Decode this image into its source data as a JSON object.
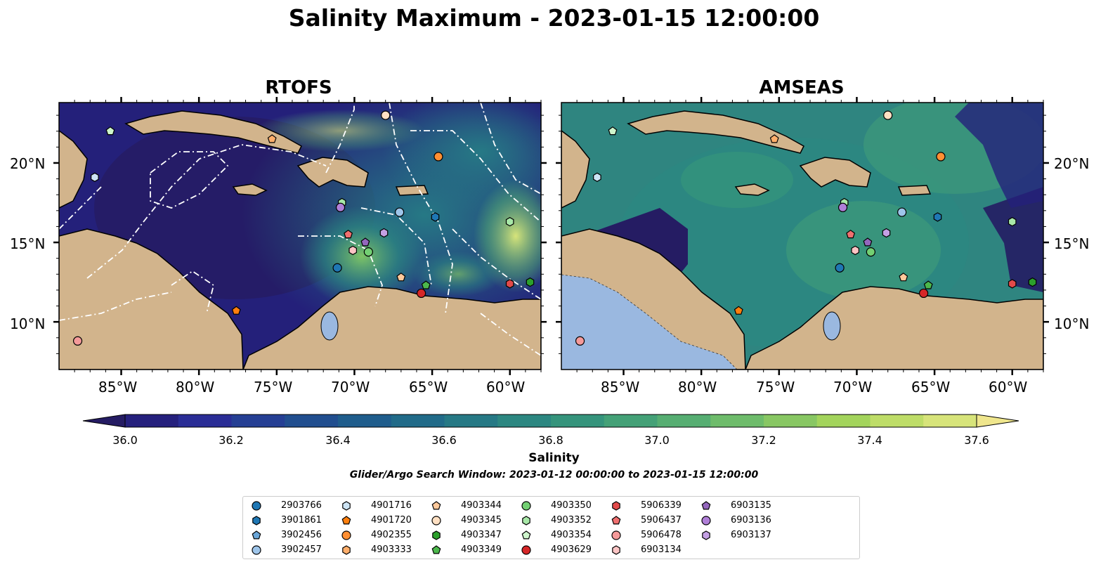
{
  "title": "Salinity Maximum - 2023-01-15 12:00:00",
  "panels": [
    {
      "title": "RTOFS"
    },
    {
      "title": "AMSEAS"
    }
  ],
  "lon_ticks": [
    "85°W",
    "80°W",
    "75°W",
    "70°W",
    "65°W",
    "60°W"
  ],
  "lat_ticks": [
    "20°N",
    "15°N",
    "10°N"
  ],
  "colorbar": {
    "label": "Salinity",
    "tick_labels": [
      "36.0",
      "36.2",
      "36.4",
      "36.6",
      "36.8",
      "37.0",
      "37.2",
      "37.4",
      "37.6"
    ],
    "colors": [
      "#251c63",
      "#25207d",
      "#2a2d96",
      "#253f94",
      "#214e8f",
      "#1f5d8c",
      "#216b89",
      "#267985",
      "#2c8781",
      "#35947c",
      "#44a177",
      "#56ae72",
      "#6ebc6b",
      "#88c763",
      "#a3d45c",
      "#bedd68",
      "#d7e47a",
      "#efe68d"
    ]
  },
  "search_window": "Glider/Argo Search Window: 2023-01-12 00:00:00 to 2023-01-15 12:00:00",
  "legend": [
    {
      "id": "2903766",
      "marker": "circle",
      "color": "#1f77b4"
    },
    {
      "id": "3901861",
      "marker": "hexagon",
      "color": "#1f77b4"
    },
    {
      "id": "3902456",
      "marker": "pentagon",
      "color": "#6aa6d8"
    },
    {
      "id": "3902457",
      "marker": "circle",
      "color": "#9ec5ea"
    },
    {
      "id": "4901716",
      "marker": "hexagon",
      "color": "#cde4f4"
    },
    {
      "id": "4901720",
      "marker": "pentagon",
      "color": "#ff7f0e"
    },
    {
      "id": "4902355",
      "marker": "circle",
      "color": "#ff8f33"
    },
    {
      "id": "4903333",
      "marker": "hexagon",
      "color": "#ffae6b"
    },
    {
      "id": "4903344",
      "marker": "pentagon",
      "color": "#ffc99b"
    },
    {
      "id": "4903345",
      "marker": "circle",
      "color": "#ffe0c3"
    },
    {
      "id": "4903347",
      "marker": "hexagon",
      "color": "#2ca02c"
    },
    {
      "id": "4903349",
      "marker": "pentagon",
      "color": "#4cb84c"
    },
    {
      "id": "4903350",
      "marker": "circle",
      "color": "#73d073"
    },
    {
      "id": "4903352",
      "marker": "hexagon",
      "color": "#a8e8a8"
    },
    {
      "id": "4903354",
      "marker": "pentagon",
      "color": "#cef5cc"
    },
    {
      "id": "4903629",
      "marker": "circle",
      "color": "#d62728"
    },
    {
      "id": "5906339",
      "marker": "hexagon",
      "color": "#e24a4a"
    },
    {
      "id": "5906437",
      "marker": "pentagon",
      "color": "#f07070"
    },
    {
      "id": "5906478",
      "marker": "circle",
      "color": "#f59a9a"
    },
    {
      "id": "6903134",
      "marker": "hexagon",
      "color": "#fbc4c4"
    },
    {
      "id": "6903135",
      "marker": "pentagon",
      "color": "#9467bd"
    },
    {
      "id": "6903136",
      "marker": "circle",
      "color": "#b07fd8"
    },
    {
      "id": "6903137",
      "marker": "hexagon",
      "color": "#c4a0e4"
    }
  ],
  "observations": [
    {
      "lon": -87.8,
      "lat": 8.8,
      "marker": "circle",
      "color": "#f59a9a"
    },
    {
      "lon": -86.7,
      "lat": 19.1,
      "marker": "hexagon",
      "color": "#cde4f4"
    },
    {
      "lon": -85.7,
      "lat": 22.0,
      "marker": "pentagon",
      "color": "#cef5cc"
    },
    {
      "lon": -75.3,
      "lat": 21.5,
      "marker": "pentagon",
      "color": "#ffae6b"
    },
    {
      "lon": -77.6,
      "lat": 10.7,
      "marker": "pentagon",
      "color": "#ff7f0e"
    },
    {
      "lon": -68.0,
      "lat": 23.0,
      "marker": "circle",
      "color": "#ffe0c3"
    },
    {
      "lon": -64.6,
      "lat": 20.4,
      "marker": "circle",
      "color": "#ff8f33"
    },
    {
      "lon": -70.8,
      "lat": 17.5,
      "marker": "hexagon",
      "color": "#a8e8a8"
    },
    {
      "lon": -70.9,
      "lat": 17.2,
      "marker": "circle",
      "color": "#b07fd8"
    },
    {
      "lon": -67.1,
      "lat": 16.9,
      "marker": "circle",
      "color": "#9ec5ea"
    },
    {
      "lon": -64.8,
      "lat": 16.6,
      "marker": "hexagon",
      "color": "#1f77b4"
    },
    {
      "lon": -70.4,
      "lat": 15.5,
      "marker": "pentagon",
      "color": "#f07070"
    },
    {
      "lon": -68.1,
      "lat": 15.6,
      "marker": "hexagon",
      "color": "#c4a0e4"
    },
    {
      "lon": -69.3,
      "lat": 15.0,
      "marker": "pentagon",
      "color": "#9467bd"
    },
    {
      "lon": -70.1,
      "lat": 14.5,
      "marker": "hexagon",
      "color": "#fbc4c4"
    },
    {
      "lon": -69.1,
      "lat": 14.4,
      "marker": "circle",
      "color": "#73d073"
    },
    {
      "lon": -71.1,
      "lat": 13.4,
      "marker": "circle",
      "color": "#1f77b4"
    },
    {
      "lon": -67.0,
      "lat": 12.8,
      "marker": "pentagon",
      "color": "#ffc99b"
    },
    {
      "lon": -65.4,
      "lat": 12.3,
      "marker": "pentagon",
      "color": "#4cb84c"
    },
    {
      "lon": -65.7,
      "lat": 11.8,
      "marker": "circle",
      "color": "#d62728"
    },
    {
      "lon": -60.0,
      "lat": 16.3,
      "marker": "hexagon",
      "color": "#a8e8a8"
    },
    {
      "lon": -60.0,
      "lat": 12.4,
      "marker": "hexagon",
      "color": "#e24a4a"
    },
    {
      "lon": -58.7,
      "lat": 12.5,
      "marker": "hexagon",
      "color": "#2ca02c"
    }
  ]
}
